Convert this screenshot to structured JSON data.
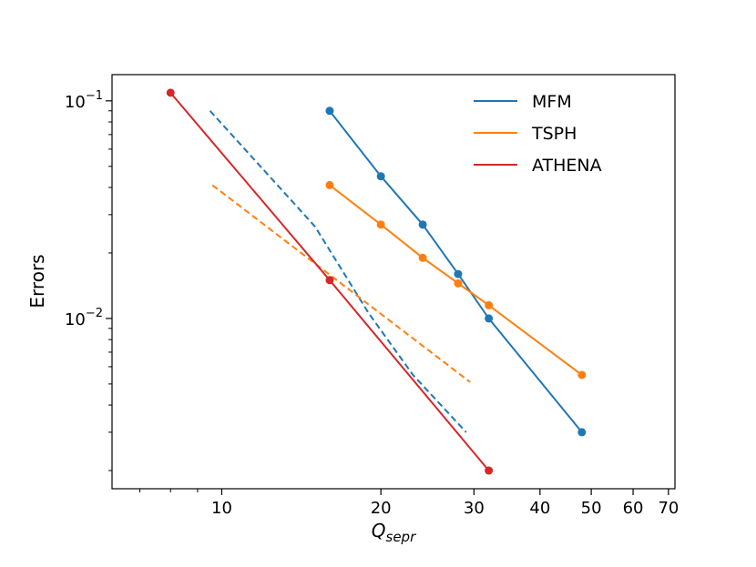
{
  "chart_data": {
    "type": "line",
    "xscale": "log",
    "yscale": "log",
    "xlabel_base": "Q",
    "xlabel_sub": "sepr",
    "ylabel": "Errors",
    "xlim": [
      6.2,
      72
    ],
    "ylim": [
      0.00165,
      0.132
    ],
    "xticks": [
      {
        "value": 10,
        "label": "10"
      },
      {
        "value": 20,
        "label": "20"
      },
      {
        "value": 30,
        "label": "30"
      },
      {
        "value": 40,
        "label": "40"
      },
      {
        "value": 50,
        "label": "50"
      },
      {
        "value": 60,
        "label": "60"
      },
      {
        "value": 70,
        "label": "70"
      }
    ],
    "xminor": [
      7,
      8,
      9
    ],
    "yticks": [
      {
        "value": 0.1,
        "base": "10",
        "exp": "−1"
      },
      {
        "value": 0.01,
        "base": "10",
        "exp": "−2"
      }
    ],
    "yminor": [
      0.002,
      0.003,
      0.004,
      0.005,
      0.006,
      0.007,
      0.008,
      0.009,
      0.02,
      0.03,
      0.04,
      0.05,
      0.06,
      0.07,
      0.08,
      0.09
    ],
    "legend_position": "top-right",
    "series": [
      {
        "name": "MFM",
        "color": "#1f77b4",
        "x": [
          16,
          20,
          24,
          28,
          32,
          48
        ],
        "y": [
          0.09,
          0.045,
          0.027,
          0.016,
          0.01,
          0.003
        ]
      },
      {
        "name": "TSPH",
        "color": "#ff7f0e",
        "x": [
          16,
          20,
          24,
          28,
          32,
          48
        ],
        "y": [
          0.041,
          0.027,
          0.019,
          0.0145,
          0.0115,
          0.0055
        ]
      },
      {
        "name": "ATHENA",
        "color": "#d62728",
        "x": [
          8,
          16,
          32
        ],
        "y": [
          0.109,
          0.015,
          0.002
        ]
      }
    ],
    "reference_lines": [
      {
        "name": "MFM-reference",
        "color": "#1f77b4",
        "x": [
          9.5,
          15,
          19,
          23,
          29
        ],
        "y": [
          0.09,
          0.0265,
          0.0105,
          0.0055,
          0.003
        ]
      },
      {
        "name": "TSPH-reference",
        "color": "#ff7f0e",
        "x": [
          9.6,
          29.5
        ],
        "y": [
          0.041,
          0.0051
        ]
      }
    ]
  }
}
